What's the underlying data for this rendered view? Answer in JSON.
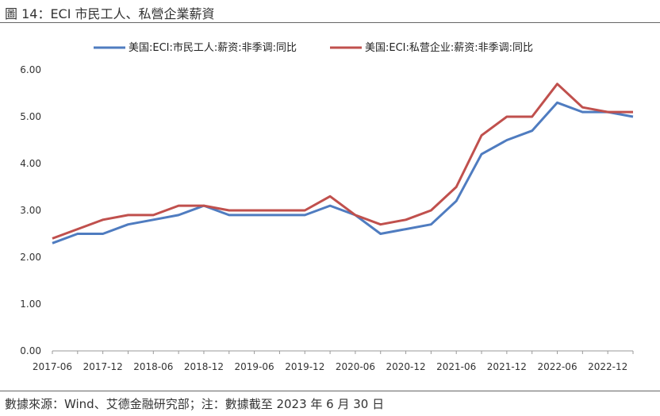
{
  "figure_title": "圖 14：ECI 市民工人、私營企業薪資",
  "source_note": "數據來源：Wind、艾德金融研究部；注：數據截至 2023 年 6 月 30 日",
  "colors": {
    "series_1": "#4F7CC0",
    "series_2": "#C0504D"
  },
  "chart_data": {
    "type": "line",
    "legend_position": "top",
    "grid": false,
    "ylim": [
      0,
      6
    ],
    "y_ticks": [
      "0.00",
      "1.00",
      "2.00",
      "3.00",
      "4.00",
      "5.00",
      "6.00"
    ],
    "x": [
      "2017-06",
      "2017-09",
      "2017-12",
      "2018-03",
      "2018-06",
      "2018-09",
      "2018-12",
      "2019-03",
      "2019-06",
      "2019-09",
      "2019-12",
      "2020-03",
      "2020-06",
      "2020-09",
      "2020-12",
      "2021-03",
      "2021-06",
      "2021-09",
      "2021-12",
      "2022-03",
      "2022-06",
      "2022-09",
      "2022-12",
      "2023-03"
    ],
    "x_tick_labels": [
      "2017-06",
      "2017-12",
      "2018-06",
      "2018-12",
      "2019-06",
      "2019-12",
      "2020-06",
      "2020-12",
      "2021-06",
      "2021-12",
      "2022-06",
      "2022-12"
    ],
    "series": [
      {
        "name": "美国:ECI:市民工人:薪资:非季调:同比",
        "values": [
          2.3,
          2.5,
          2.5,
          2.7,
          2.8,
          2.9,
          3.1,
          2.9,
          2.9,
          2.9,
          2.9,
          3.1,
          2.9,
          2.5,
          2.6,
          2.7,
          3.2,
          4.2,
          4.5,
          4.7,
          5.3,
          5.1,
          5.1,
          5.0
        ]
      },
      {
        "name": "美国:ECI:私营企业:薪资:非季调:同比",
        "values": [
          2.4,
          2.6,
          2.8,
          2.9,
          2.9,
          3.1,
          3.1,
          3.0,
          3.0,
          3.0,
          3.0,
          3.3,
          2.9,
          2.7,
          2.8,
          3.0,
          3.5,
          4.6,
          5.0,
          5.0,
          5.7,
          5.2,
          5.1,
          5.1
        ]
      }
    ]
  }
}
